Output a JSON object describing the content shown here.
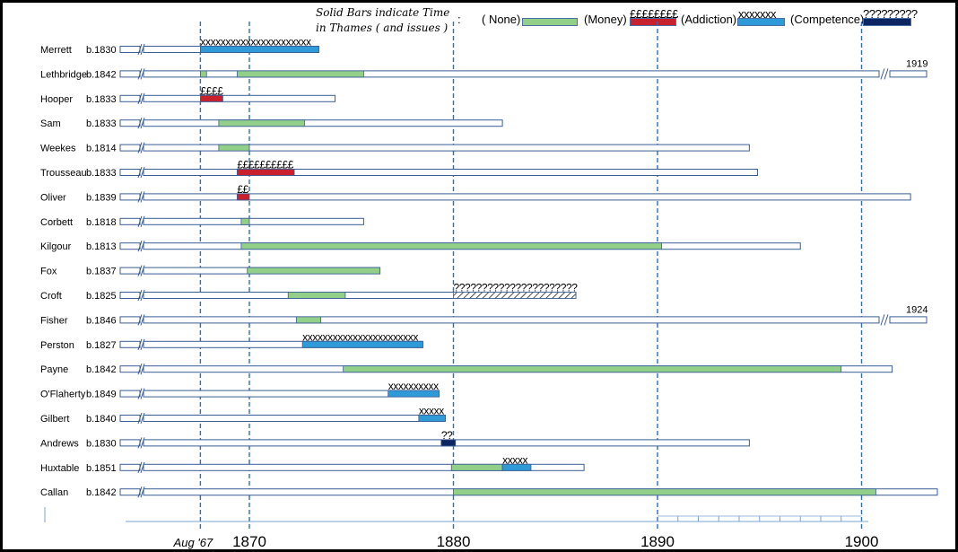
{
  "legend": {
    "title": "Solid Bars indicate Time in Thames ( and issues )",
    "colon": ":",
    "items": [
      {
        "label": "( None)",
        "color": "#92d08a",
        "mark": ""
      },
      {
        "label": "(Money)",
        "color": "#c8202c",
        "mark": "££££££££"
      },
      {
        "label": "(Addiction)",
        "color": "#2e9bd8",
        "mark": "xxxxxxx"
      },
      {
        "label": "(Competence)",
        "color": "#0d2561",
        "mark": "?????????"
      }
    ]
  },
  "chart_data": {
    "type": "timeline",
    "x_axis": {
      "start": 1865.5,
      "end": 1904,
      "ticks": [
        1870,
        1880,
        1890,
        1900
      ],
      "extra_label": {
        "value": 1867.6,
        "text": "Aug '67"
      }
    },
    "reference_lines": [
      1867.6,
      1870,
      1880,
      1890,
      1900
    ],
    "break_labels": [
      {
        "row": "Lethbridge",
        "text": "1919"
      },
      {
        "row": "Fisher",
        "text": "1924"
      }
    ],
    "series": [
      {
        "name": "Merrett",
        "born": "b.1830",
        "life_end": 1873.4,
        "overflow": false,
        "bars": [
          {
            "start": 1867.6,
            "end": 1873.4,
            "issue": "Addiction",
            "mark": "xxxxxxxxxxxxxxxxxxxxxx"
          }
        ]
      },
      {
        "name": "Lethbridge",
        "born": "b.1842",
        "life_end": 1904,
        "overflow": true,
        "bars": [
          {
            "start": 1867.6,
            "end": 1867.9,
            "issue": "None",
            "mark": ""
          },
          {
            "start": 1869.4,
            "end": 1875.6,
            "issue": "None",
            "mark": ""
          }
        ]
      },
      {
        "name": "Hooper",
        "born": "b.1833",
        "life_end": 1874.2,
        "overflow": false,
        "bars": [
          {
            "start": 1867.6,
            "end": 1868.7,
            "issue": "Money",
            "mark": "££££"
          }
        ]
      },
      {
        "name": "Sam",
        "born": "b.1833",
        "life_end": 1882.4,
        "overflow": false,
        "bars": [
          {
            "start": 1868.5,
            "end": 1872.7,
            "issue": "None",
            "mark": ""
          }
        ]
      },
      {
        "name": "Weekes",
        "born": "b.1814",
        "life_end": 1894.5,
        "overflow": false,
        "bars": [
          {
            "start": 1868.5,
            "end": 1870,
            "issue": "None",
            "mark": ""
          }
        ]
      },
      {
        "name": "Trousseau",
        "born": "b.1833",
        "life_end": 1894.9,
        "overflow": false,
        "bars": [
          {
            "start": 1869.4,
            "end": 1872.2,
            "issue": "Money",
            "mark": "££££££££££"
          }
        ]
      },
      {
        "name": "Oliver",
        "born": "b.1839",
        "life_end": 1902.4,
        "overflow": false,
        "bars": [
          {
            "start": 1869.4,
            "end": 1870,
            "issue": "Money",
            "mark": "££"
          }
        ]
      },
      {
        "name": "Corbett",
        "born": "b.1818",
        "life_end": 1875.6,
        "overflow": false,
        "bars": [
          {
            "start": 1869.6,
            "end": 1870,
            "issue": "None",
            "mark": ""
          }
        ]
      },
      {
        "name": "Kilgour",
        "born": "b.1813",
        "life_end": 1897,
        "overflow": false,
        "bars": [
          {
            "start": 1869.6,
            "end": 1890.2,
            "issue": "None",
            "mark": ""
          }
        ]
      },
      {
        "name": "Fox",
        "born": "b.1837",
        "life_end": 1876.4,
        "overflow": false,
        "bars": [
          {
            "start": 1869.9,
            "end": 1876.4,
            "issue": "None",
            "mark": ""
          }
        ]
      },
      {
        "name": "Croft",
        "born": "b.1825",
        "life_end": 1886,
        "overflow": false,
        "bars": [
          {
            "start": 1871.9,
            "end": 1874.7,
            "issue": "None",
            "mark": ""
          },
          {
            "start": 1880,
            "end": 1886,
            "issue": "Competence",
            "mark": "??????????????????????"
          }
        ]
      },
      {
        "name": "Fisher",
        "born": "b.1846",
        "life_end": 1904,
        "overflow": true,
        "bars": [
          {
            "start": 1872.3,
            "end": 1873.5,
            "issue": "None",
            "mark": ""
          }
        ]
      },
      {
        "name": "Perston",
        "born": "b.1827",
        "life_end": 1878.5,
        "overflow": false,
        "bars": [
          {
            "start": 1872.6,
            "end": 1878.5,
            "issue": "Addiction",
            "mark": "xxxxxxxxxxxxxxxxxxxxxxx"
          }
        ]
      },
      {
        "name": "Payne",
        "born": "b.1842",
        "life_end": 1901.5,
        "overflow": false,
        "bars": [
          {
            "start": 1874.6,
            "end": 1899,
            "issue": "None",
            "mark": ""
          }
        ]
      },
      {
        "name": "O'Flaherty",
        "born": "b.1849",
        "life_end": 1879.3,
        "overflow": false,
        "bars": [
          {
            "start": 1876.8,
            "end": 1879.3,
            "issue": "Addiction",
            "mark": "xxxxxxxxxx"
          }
        ]
      },
      {
        "name": "Gilbert",
        "born": "b.1840",
        "life_end": 1879.6,
        "overflow": false,
        "bars": [
          {
            "start": 1878.3,
            "end": 1879.6,
            "issue": "Addiction",
            "mark": "xxxxx"
          }
        ]
      },
      {
        "name": "Andrews",
        "born": "b.1830",
        "life_end": 1894.5,
        "overflow": false,
        "bars": [
          {
            "start": 1879.4,
            "end": 1880.1,
            "issue": "Competence",
            "mark": "??"
          }
        ]
      },
      {
        "name": "Huxtable",
        "born": "b.1851",
        "life_end": 1886.4,
        "overflow": false,
        "bars": [
          {
            "start": 1879.9,
            "end": 1882.4,
            "issue": "None",
            "mark": ""
          },
          {
            "start": 1882.4,
            "end": 1883.8,
            "issue": "Addiction",
            "mark": "xxxxx"
          }
        ]
      },
      {
        "name": "Callan",
        "born": "b.1842",
        "life_end": 1904,
        "overflow": false,
        "bars": [
          {
            "start": 1880,
            "end": 1900.7,
            "issue": "None",
            "mark": ""
          }
        ]
      }
    ]
  }
}
